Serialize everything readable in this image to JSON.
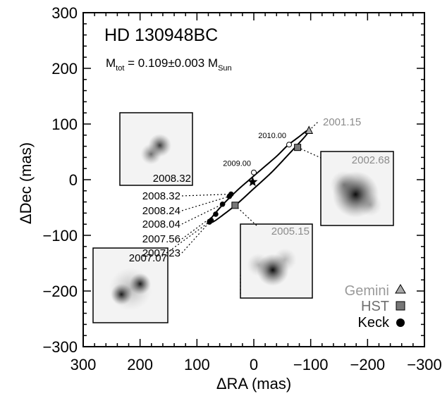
{
  "chart_data": {
    "type": "scatter",
    "title": "HD 130948BC",
    "mass_label": {
      "prefix": "M",
      "prefix_sub": "tot",
      "value": " = 0.109±0.003 M",
      "unit_sub": "Sun"
    },
    "xlabel": "ΔRA (mas)",
    "ylabel": "ΔDec (mas)",
    "xlim": [
      300,
      -300
    ],
    "ylim": [
      -300,
      300
    ],
    "xticks": [
      "300",
      "200",
      "100",
      "0",
      "−100",
      "−200",
      "−300"
    ],
    "xtick_values": [
      300,
      200,
      100,
      0,
      -100,
      -200,
      -300
    ],
    "yticks": [
      "300",
      "200",
      "100",
      "0",
      "−100",
      "−200",
      "−300"
    ],
    "ytick_values": [
      300,
      200,
      100,
      0,
      -100,
      -200,
      -300
    ],
    "grid": false,
    "orbit": {
      "points": [
        [
          78,
          -74
        ],
        [
          66,
          -58
        ],
        [
          50,
          -40
        ],
        [
          30,
          -20
        ],
        [
          10,
          -2
        ],
        [
          -15,
          20
        ],
        [
          -40,
          42
        ],
        [
          -60,
          62
        ],
        [
          -78,
          76
        ],
        [
          -92,
          87
        ],
        [
          -96,
          88
        ],
        [
          -92,
          80
        ],
        [
          -78,
          64
        ],
        [
          -58,
          42
        ],
        [
          -30,
          12
        ],
        [
          0,
          -16
        ],
        [
          30,
          -44
        ],
        [
          55,
          -64
        ],
        [
          72,
          -76
        ],
        [
          78,
          -74
        ]
      ]
    },
    "primary": {
      "x": 2,
      "y": -4,
      "marker": "star"
    },
    "predicted_epochs": [
      {
        "label": "2010.00",
        "x": -62,
        "y": 63
      },
      {
        "label": "2009.00",
        "x": 0,
        "y": 13
      }
    ],
    "series": [
      {
        "name": "Gemini",
        "marker": "triangle",
        "color": "#9a9a9a",
        "points": [
          {
            "x": -97,
            "y": 88,
            "epoch": "2001.15"
          }
        ]
      },
      {
        "name": "HST",
        "marker": "square",
        "color": "#6f6f6f",
        "points": [
          {
            "x": -77,
            "y": 58,
            "epoch": "2002.68"
          },
          {
            "x": 33,
            "y": -46,
            "epoch": "2005.15"
          }
        ]
      },
      {
        "name": "Keck",
        "marker": "circle",
        "color": "#000000",
        "points": [
          {
            "x": 40,
            "y": -26,
            "epoch": "2008.32"
          },
          {
            "x": 43,
            "y": -30,
            "epoch": "2008.24"
          },
          {
            "x": 55,
            "y": -44,
            "epoch": "2008.04"
          },
          {
            "x": 67,
            "y": -62,
            "epoch": "2007.56"
          },
          {
            "x": 75,
            "y": -73,
            "epoch": "2007.23"
          },
          {
            "x": 78,
            "y": -76,
            "epoch": "2007.07"
          }
        ]
      }
    ],
    "epoch_labels_left": [
      "2008.32",
      "2008.24",
      "2008.04",
      "2007.56",
      "2007.23"
    ],
    "legend": {
      "placement": "bottom-right",
      "entries": [
        "Gemini",
        "HST",
        "Keck"
      ]
    },
    "insets": [
      {
        "name": "2008.32",
        "epoch": "2008.32",
        "blobs": [
          [
            0.55,
            0.45,
            0.1,
            0.75
          ],
          [
            0.43,
            0.57,
            0.09,
            0.55
          ]
        ]
      },
      {
        "name": "2002.68",
        "epoch": "2002.68",
        "blobs": [
          [
            0.48,
            0.58,
            0.2,
            0.95
          ],
          [
            0.32,
            0.45,
            0.12,
            0.35
          ],
          [
            0.68,
            0.72,
            0.1,
            0.25
          ]
        ]
      },
      {
        "name": "2005.15",
        "epoch": "2005.15",
        "blobs": [
          [
            0.45,
            0.62,
            0.14,
            0.95
          ],
          [
            0.25,
            0.55,
            0.1,
            0.25
          ],
          [
            0.62,
            0.48,
            0.1,
            0.25
          ]
        ]
      },
      {
        "name": "2007.07",
        "epoch": "2007.07",
        "blobs": [
          [
            0.63,
            0.48,
            0.09,
            0.9
          ],
          [
            0.38,
            0.62,
            0.09,
            0.9
          ],
          [
            0.5,
            0.55,
            0.18,
            0.25
          ]
        ]
      }
    ]
  }
}
